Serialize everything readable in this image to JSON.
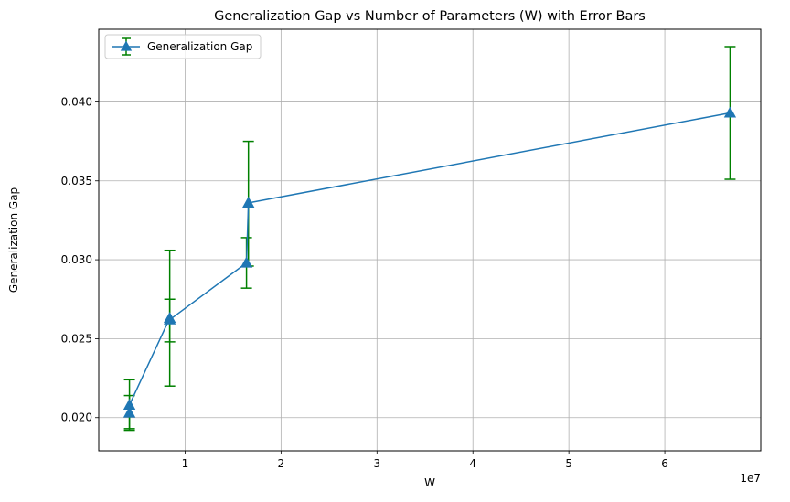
{
  "chart_data": {
    "type": "line",
    "title": "Generalization Gap vs Number of Parameters (W) with Error Bars",
    "xlabel": "W",
    "ylabel": "Generalization Gap",
    "x_offset_text": "1e7",
    "xlim": [
      0.1,
      7.0
    ],
    "ylim": [
      0.0179,
      0.0446
    ],
    "x_ticks": [
      1,
      2,
      3,
      4,
      5,
      6
    ],
    "x_tick_labels": [
      "1",
      "2",
      "3",
      "4",
      "5",
      "6"
    ],
    "y_ticks": [
      0.02,
      0.025,
      0.03,
      0.035,
      0.04
    ],
    "y_tick_labels": [
      "0.020",
      "0.025",
      "0.030",
      "0.035",
      "0.040"
    ],
    "grid": true,
    "legend_position": "top-left",
    "series": [
      {
        "name": "Generalization Gap",
        "color": "#1f77b4",
        "marker": "triangle-up",
        "error_bar_color": "#008000",
        "points": [
          {
            "x": 0.42,
            "y": 0.0203,
            "err_low": 0.0192,
            "err_high": 0.0214
          },
          {
            "x": 0.42,
            "y": 0.0208,
            "err_low": 0.0193,
            "err_high": 0.0224
          },
          {
            "x": 0.84,
            "y": 0.0263,
            "err_low": 0.022,
            "err_high": 0.0306
          },
          {
            "x": 0.84,
            "y": 0.0262,
            "err_low": 0.0248,
            "err_high": 0.0275
          },
          {
            "x": 1.64,
            "y": 0.0298,
            "err_low": 0.0282,
            "err_high": 0.0314
          },
          {
            "x": 1.66,
            "y": 0.0336,
            "err_low": 0.0296,
            "err_high": 0.0375
          },
          {
            "x": 6.68,
            "y": 0.0393,
            "err_low": 0.0351,
            "err_high": 0.0435
          }
        ]
      }
    ]
  }
}
